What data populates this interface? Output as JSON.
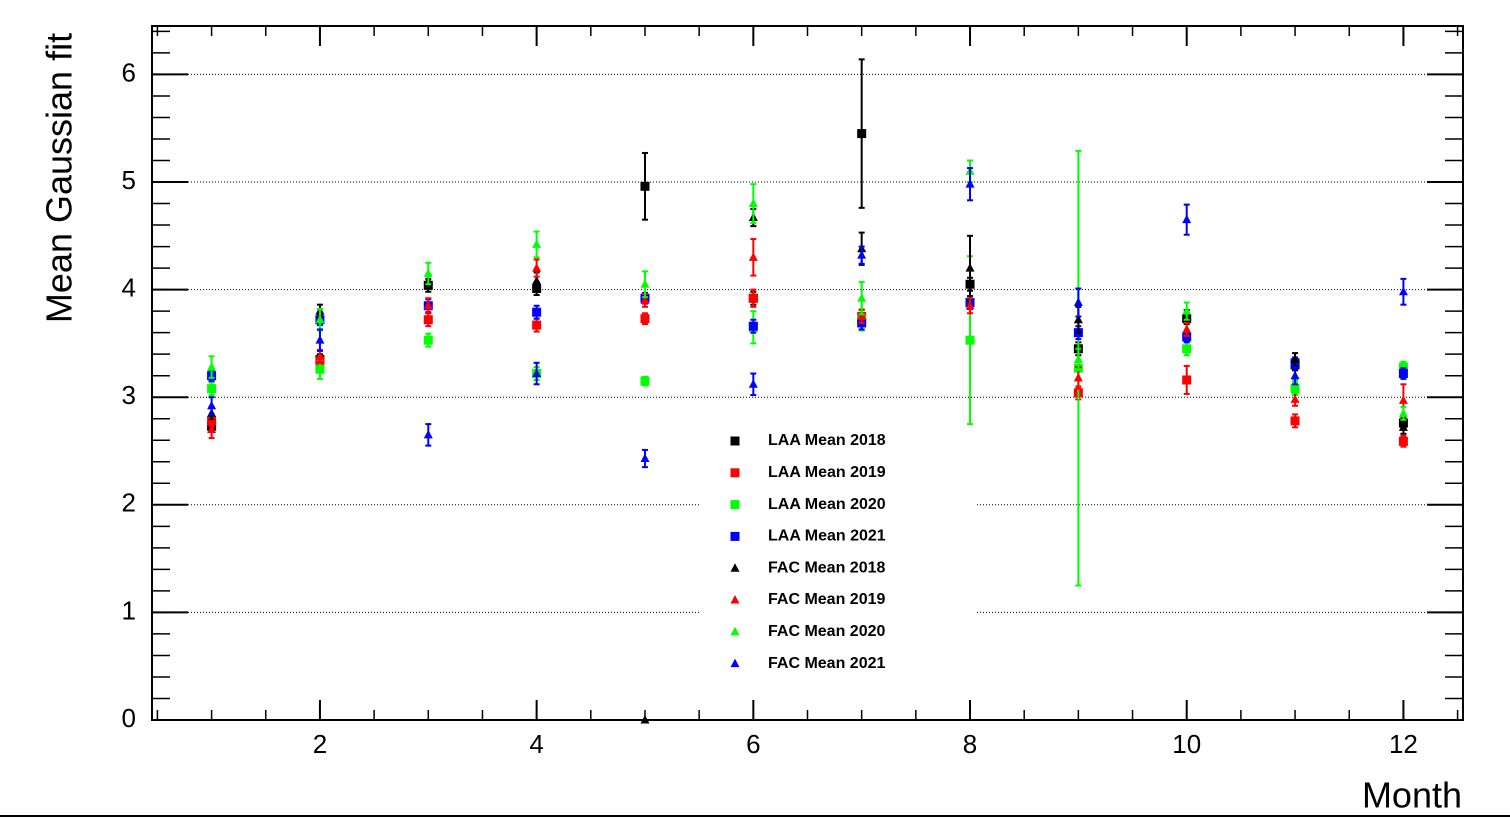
{
  "chart_data": {
    "type": "errorbar",
    "xlabel": "Month",
    "ylabel": "Mean Gaussian fit",
    "x": [
      1,
      2,
      3,
      4,
      5,
      6,
      7,
      8,
      9,
      10,
      11,
      12
    ],
    "xlim": [
      0.45,
      12.55
    ],
    "xticks": [
      2,
      4,
      6,
      8,
      10,
      12
    ],
    "ylim": [
      0,
      6.45
    ],
    "yticks": [
      0,
      1,
      2,
      3,
      4,
      5,
      6
    ],
    "grid": true,
    "legend": "center",
    "series": [
      {
        "name": "LAA Mean 2018",
        "color": "#000000",
        "marker": "square",
        "values": [
          2.73,
          3.35,
          4.04,
          4.01,
          4.96,
          3.92,
          5.45,
          4.05,
          3.45,
          3.73,
          3.3,
          2.76
        ],
        "errors": [
          0.05,
          0.05,
          0.06,
          0.06,
          0.31,
          0.06,
          0.69,
          0.06,
          0.06,
          0.05,
          0.05,
          0.05
        ]
      },
      {
        "name": "LAA Mean 2019",
        "color": "#ff0000",
        "marker": "square",
        "values": [
          2.78,
          3.33,
          3.72,
          3.67,
          3.73,
          3.92,
          3.75,
          3.88,
          3.04,
          3.16,
          2.78,
          2.59
        ],
        "errors": [
          0.05,
          0.05,
          0.06,
          0.06,
          0.05,
          0.08,
          0.06,
          0.06,
          0.06,
          0.13,
          0.06,
          0.05
        ]
      },
      {
        "name": "LAA Mean 2020",
        "color": "#00ff00",
        "marker": "square",
        "values": [
          3.08,
          3.26,
          3.53,
          3.22,
          3.15,
          3.65,
          3.72,
          3.53,
          3.27,
          3.45,
          3.08,
          3.28
        ],
        "errors": [
          0.06,
          0.09,
          0.06,
          0.06,
          0.04,
          0.15,
          0.1,
          0.78,
          2.02,
          0.06,
          0.06,
          0.05
        ]
      },
      {
        "name": "LAA Mean 2021",
        "color": "#0000ff",
        "marker": "square",
        "values": [
          3.2,
          3.72,
          3.85,
          3.79,
          3.92,
          3.66,
          3.69,
          3.88,
          3.6,
          3.56,
          3.32,
          3.22
        ],
        "errors": [
          0.05,
          0.05,
          0.06,
          0.06,
          0.05,
          0.06,
          0.06,
          0.06,
          0.06,
          0.05,
          0.05,
          0.05
        ]
      },
      {
        "name": "FAC Mean 2018",
        "color": "#000000",
        "marker": "triangle",
        "values": [
          2.85,
          3.8,
          4.08,
          4.08,
          0,
          4.67,
          4.38,
          4.2,
          3.72,
          3.75,
          3.35,
          2.72
        ],
        "errors": [
          0.06,
          0.06,
          0.06,
          0.08,
          0,
          0.08,
          0.15,
          0.3,
          0.12,
          0.06,
          0.06,
          0.06
        ]
      },
      {
        "name": "FAC Mean 2019",
        "color": "#ff0000",
        "marker": "triangle",
        "values": [
          2.7,
          3.38,
          3.85,
          4.2,
          3.9,
          4.3,
          3.75,
          3.85,
          3.18,
          3.63,
          2.98,
          2.97
        ],
        "errors": [
          0.08,
          0.06,
          0.07,
          0.08,
          0.06,
          0.17,
          0.06,
          0.07,
          0.1,
          0.06,
          0.06,
          0.15
        ]
      },
      {
        "name": "FAC Mean 2020",
        "color": "#00ff00",
        "marker": "triangle",
        "values": [
          3.28,
          3.72,
          4.15,
          4.42,
          4.05,
          4.8,
          3.92,
          5.1,
          3.35,
          3.8,
          3.1,
          2.85
        ],
        "errors": [
          0.1,
          0.1,
          0.1,
          0.12,
          0.12,
          0.18,
          0.15,
          0.1,
          0.1,
          0.08,
          0.06,
          0.06
        ]
      },
      {
        "name": "FAC Mean 2021",
        "color": "#0000ff",
        "marker": "triangle",
        "values": [
          2.92,
          3.53,
          2.65,
          3.22,
          2.43,
          3.12,
          4.32,
          4.98,
          3.88,
          4.65,
          3.2,
          3.98
        ],
        "errors": [
          0.08,
          0.1,
          0.1,
          0.1,
          0.08,
          0.1,
          0.08,
          0.15,
          0.13,
          0.14,
          0.08,
          0.12
        ]
      }
    ]
  }
}
